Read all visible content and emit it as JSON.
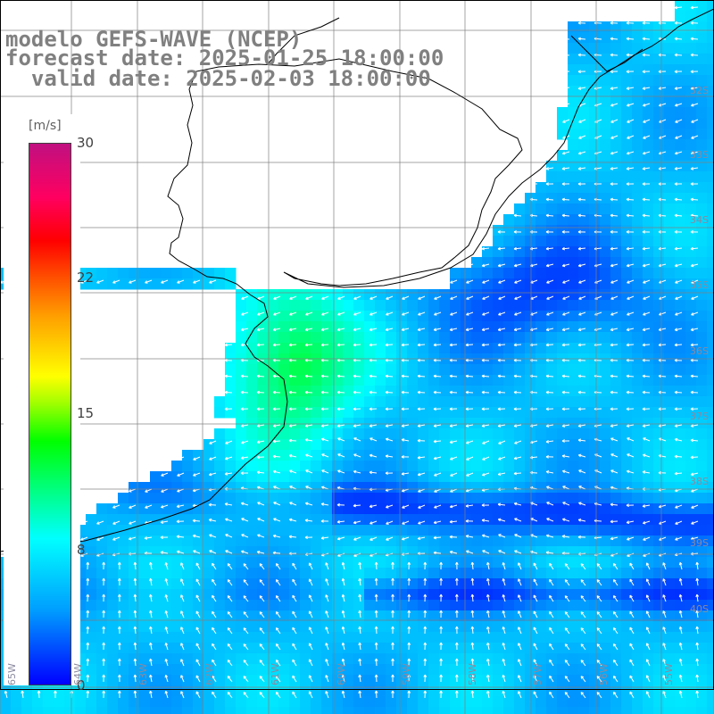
{
  "title": {
    "line1": "modelo GEFS-WAVE (NCEP)",
    "line2": "forecast date: 2025-01-25 18:00:00",
    "line3": "  valid date: 2025-02-03 18:00:00"
  },
  "legend": {
    "unit": "[m/s]",
    "ticks": [
      "30",
      "22",
      "15",
      "8",
      "0"
    ],
    "colors": [
      "#0000ff",
      "#00a0ff",
      "#00ffff",
      "#00ff00",
      "#ffff00",
      "#ff0000",
      "#c01080"
    ]
  },
  "lat_labels": [
    "32S",
    "33S",
    "34S",
    "35S",
    "36S",
    "37S",
    "38S",
    "39S",
    "40S"
  ],
  "lon_labels": [
    "65W",
    "64W",
    "63W",
    "62W",
    "61W",
    "60W",
    "59W",
    "58W",
    "57W",
    "56W",
    "55W"
  ],
  "map": {
    "land_color": "#ffffff",
    "grid_color": "#808080",
    "coast_color": "#000000",
    "arrow_color": "#ffffff"
  }
}
